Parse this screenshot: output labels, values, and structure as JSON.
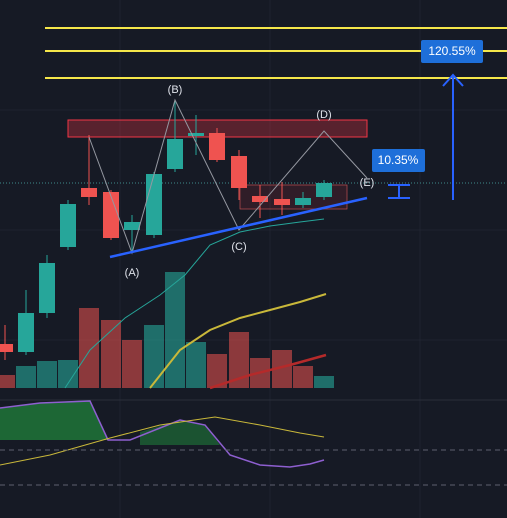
{
  "annotations": {
    "wave_labels": [
      "(A)",
      "(B)",
      "(C)",
      "(D)",
      "(E)"
    ],
    "targets": [
      "10.35%",
      "120.55%"
    ]
  }
}
